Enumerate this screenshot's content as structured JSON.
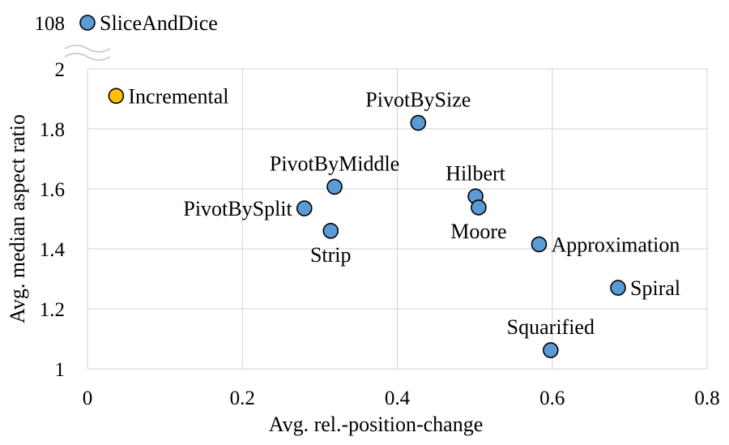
{
  "chart_data": {
    "type": "scatter",
    "title": "",
    "xlabel": "Avg. rel.-position-change",
    "ylabel": "Avg. median aspect ratio",
    "xlim": [
      0,
      0.8
    ],
    "ylim": [
      1,
      2
    ],
    "y_axis_break": {
      "above_value": 2,
      "top_tick": "108"
    },
    "x_ticks": [
      "0",
      "0.2",
      "0.4",
      "0.6",
      "0.8"
    ],
    "y_ticks": [
      "1",
      "1.2",
      "1.4",
      "1.6",
      "1.8",
      "2"
    ],
    "grid": true,
    "colors": {
      "default_point": "#5b9bd5",
      "highlight_point": "#ffc000",
      "point_stroke": "#000000"
    },
    "points": [
      {
        "label": "SliceAndDice",
        "x": 0.0,
        "y": 108,
        "color": "#5b9bd5",
        "label_pos": "right"
      },
      {
        "label": "Incremental",
        "x": 0.037,
        "y": 1.91,
        "color": "#ffc000",
        "label_pos": "right"
      },
      {
        "label": "PivotBySize",
        "x": 0.427,
        "y": 1.82,
        "color": "#5b9bd5",
        "label_pos": "above"
      },
      {
        "label": "PivotByMiddle",
        "x": 0.319,
        "y": 1.607,
        "color": "#5b9bd5",
        "label_pos": "above"
      },
      {
        "label": "PivotBySplit",
        "x": 0.28,
        "y": 1.535,
        "color": "#5b9bd5",
        "label_pos": "left"
      },
      {
        "label": "Strip",
        "x": 0.314,
        "y": 1.46,
        "color": "#5b9bd5",
        "label_pos": "below"
      },
      {
        "label": "Hilbert",
        "x": 0.501,
        "y": 1.575,
        "color": "#5b9bd5",
        "label_pos": "above"
      },
      {
        "label": "Moore",
        "x": 0.505,
        "y": 1.538,
        "color": "#5b9bd5",
        "label_pos": "below"
      },
      {
        "label": "Approximation",
        "x": 0.583,
        "y": 1.415,
        "color": "#5b9bd5",
        "label_pos": "right"
      },
      {
        "label": "Spiral",
        "x": 0.685,
        "y": 1.27,
        "color": "#5b9bd5",
        "label_pos": "right"
      },
      {
        "label": "Squarified",
        "x": 0.598,
        "y": 1.062,
        "color": "#5b9bd5",
        "label_pos": "above"
      }
    ]
  }
}
